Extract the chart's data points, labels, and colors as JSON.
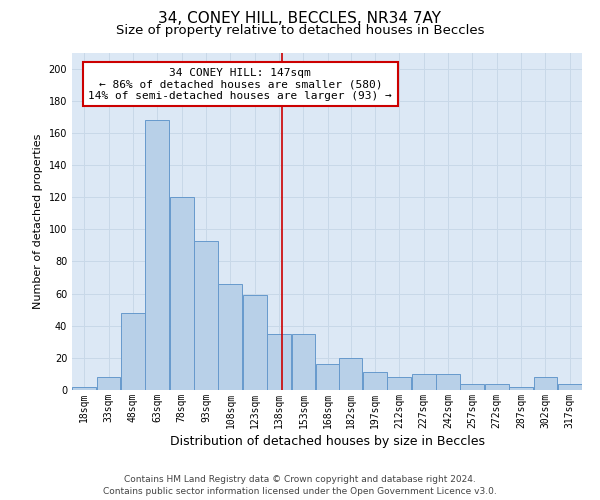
{
  "title1": "34, CONEY HILL, BECCLES, NR34 7AY",
  "title2": "Size of property relative to detached houses in Beccles",
  "xlabel": "Distribution of detached houses by size in Beccles",
  "ylabel": "Number of detached properties",
  "footnote1": "Contains HM Land Registry data © Crown copyright and database right 2024.",
  "footnote2": "Contains public sector information licensed under the Open Government Licence v3.0.",
  "annotation_line1": "34 CONEY HILL: 147sqm",
  "annotation_line2": "← 86% of detached houses are smaller (580)",
  "annotation_line3": "14% of semi-detached houses are larger (93) →",
  "bin_edges": [
    18,
    33,
    48,
    63,
    78,
    93,
    108,
    123,
    138,
    153,
    168,
    182,
    197,
    212,
    227,
    242,
    257,
    272,
    287,
    302,
    317
  ],
  "bar_heights": [
    2,
    8,
    48,
    168,
    120,
    93,
    66,
    59,
    35,
    35,
    16,
    20,
    11,
    8,
    10,
    10,
    4,
    4,
    2,
    8,
    4
  ],
  "bar_color": "#b8d0e8",
  "bar_edge_color": "#6699cc",
  "vline_color": "#cc0000",
  "vline_x": 147,
  "annotation_box_color": "#cc0000",
  "ylim": [
    0,
    210
  ],
  "yticks": [
    0,
    20,
    40,
    60,
    80,
    100,
    120,
    140,
    160,
    180,
    200
  ],
  "grid_color": "#c8d8e8",
  "background_color": "#dce8f5",
  "title1_fontsize": 11,
  "title2_fontsize": 9.5,
  "xlabel_fontsize": 9,
  "ylabel_fontsize": 8,
  "tick_fontsize": 7,
  "annotation_fontsize": 8,
  "footnote_fontsize": 6.5
}
